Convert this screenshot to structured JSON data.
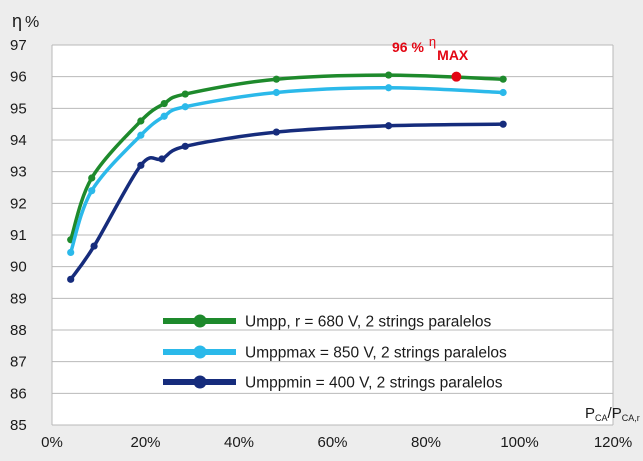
{
  "chart_data": {
    "type": "line",
    "ylabel": "η",
    "ylabel_unit": "%",
    "xlabel_main": "P",
    "xlabel_sub1": "CA",
    "xlabel_sep": "/P",
    "xlabel_sub2": "CA,r",
    "xlim": [
      0,
      120
    ],
    "ylim": [
      85,
      97
    ],
    "grid": {
      "x": false,
      "y": true
    },
    "x_ticks": [
      0,
      20,
      40,
      60,
      80,
      100,
      120
    ],
    "x_tick_labels": [
      "0%",
      "20%",
      "40%",
      "60%",
      "80%",
      "100%",
      "120%"
    ],
    "y_ticks": [
      85,
      86,
      87,
      88,
      89,
      90,
      91,
      92,
      93,
      94,
      95,
      96,
      97
    ],
    "y_tick_labels": [
      "85",
      "86",
      "87",
      "88",
      "89",
      "90",
      "91",
      "92",
      "93",
      "94",
      "95",
      "96",
      "97"
    ],
    "legend_position": "bottom-right",
    "series": [
      {
        "name": "Umpp, r = 680 V, 2 strings paralelos",
        "color": "#1e8a2c",
        "x": [
          4,
          8.5,
          19,
          24,
          28.5,
          48,
          72,
          96.5
        ],
        "y": [
          90.85,
          92.8,
          94.6,
          95.15,
          95.45,
          95.92,
          96.05,
          95.92
        ]
      },
      {
        "name": "Umppmax = 850 V, 2 strings paralelos",
        "color": "#2bb9ea",
        "x": [
          4,
          8.5,
          19,
          24,
          28.5,
          48,
          72,
          96.5
        ],
        "y": [
          90.45,
          92.4,
          94.15,
          94.75,
          95.05,
          95.5,
          95.65,
          95.5
        ]
      },
      {
        "name": "Umppmin = 400 V, 2 strings paralelos",
        "color": "#162c7c",
        "x": [
          4,
          9,
          19,
          23.5,
          28.5,
          48,
          72,
          96.5
        ],
        "y": [
          89.6,
          90.65,
          93.2,
          93.4,
          93.8,
          94.25,
          94.45,
          94.5
        ]
      }
    ],
    "annotation": {
      "value_text": "96 %",
      "eta": "η",
      "eta_sub": "MAX",
      "color": "#e30613",
      "point": {
        "x": 86.5,
        "y": 96.0
      }
    }
  }
}
